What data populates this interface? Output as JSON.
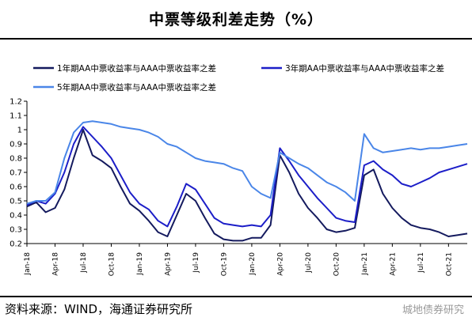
{
  "title": "中票等级利差走势（%）",
  "source": "资料来源：WIND，海通证券研究所",
  "watermark": "城地债券研究",
  "chart_data": {
    "type": "line",
    "title": "中票等级利差走势（%）",
    "xlabel": "",
    "ylabel": "",
    "ylim": [
      0.2,
      1.2
    ],
    "yticks": [
      0.2,
      0.3,
      0.4,
      0.5,
      0.6,
      0.7,
      0.8,
      0.9,
      1.0,
      1.1,
      1.2
    ],
    "ytick_labels": [
      "0.2",
      "0.3",
      "0.4",
      "0.5",
      "0.6",
      "0.7",
      "0.8",
      "0.9",
      "1",
      "1.1",
      "1.2"
    ],
    "xticks": [
      "Jan-18",
      "Apr-18",
      "Jul-18",
      "Oct-18",
      "Jan-19",
      "Apr-19",
      "Jul-19",
      "Oct-19",
      "Jan-20",
      "Apr-20",
      "Jul-20",
      "Oct-20",
      "Jan-21",
      "Apr-21",
      "Jul-21",
      "Oct-21"
    ],
    "x_range": [
      "2018-01",
      "2021-12"
    ],
    "grid": false,
    "legend_position": "top",
    "series": [
      {
        "name": "1年期AA中票收益率与AAA中票收益率之差",
        "color": "#141a5e",
        "x": [
          "2018-01",
          "2018-02",
          "2018-03",
          "2018-04",
          "2018-05",
          "2018-06",
          "2018-07",
          "2018-08",
          "2018-09",
          "2018-10",
          "2018-11",
          "2018-12",
          "2019-01",
          "2019-02",
          "2019-03",
          "2019-04",
          "2019-05",
          "2019-06",
          "2019-07",
          "2019-08",
          "2019-09",
          "2019-10",
          "2019-11",
          "2019-12",
          "2020-01",
          "2020-02",
          "2020-03",
          "2020-04",
          "2020-05",
          "2020-06",
          "2020-07",
          "2020-08",
          "2020-09",
          "2020-10",
          "2020-11",
          "2020-12",
          "2021-01",
          "2021-02",
          "2021-03",
          "2021-04",
          "2021-05",
          "2021-06",
          "2021-07",
          "2021-08",
          "2021-09",
          "2021-10",
          "2021-11",
          "2021-12"
        ],
        "values": [
          0.46,
          0.49,
          0.42,
          0.45,
          0.58,
          0.8,
          1.0,
          0.82,
          0.78,
          0.73,
          0.6,
          0.48,
          0.43,
          0.36,
          0.28,
          0.25,
          0.4,
          0.55,
          0.5,
          0.38,
          0.27,
          0.23,
          0.22,
          0.22,
          0.24,
          0.24,
          0.33,
          0.82,
          0.7,
          0.55,
          0.45,
          0.38,
          0.3,
          0.28,
          0.29,
          0.31,
          0.68,
          0.72,
          0.55,
          0.45,
          0.38,
          0.33,
          0.31,
          0.3,
          0.28,
          0.25,
          0.26,
          0.27
        ]
      },
      {
        "name": "3年期AA中票收益率与AAA中票收益率之差",
        "color": "#1c1ec8",
        "x": [
          "2018-01",
          "2018-02",
          "2018-03",
          "2018-04",
          "2018-05",
          "2018-06",
          "2018-07",
          "2018-08",
          "2018-09",
          "2018-10",
          "2018-11",
          "2018-12",
          "2019-01",
          "2019-02",
          "2019-03",
          "2019-04",
          "2019-05",
          "2019-06",
          "2019-07",
          "2019-08",
          "2019-09",
          "2019-10",
          "2019-11",
          "2019-12",
          "2020-01",
          "2020-02",
          "2020-03",
          "2020-04",
          "2020-05",
          "2020-06",
          "2020-07",
          "2020-08",
          "2020-09",
          "2020-10",
          "2020-11",
          "2020-12",
          "2021-01",
          "2021-02",
          "2021-03",
          "2021-04",
          "2021-05",
          "2021-06",
          "2021-07",
          "2021-08",
          "2021-09",
          "2021-10",
          "2021-11",
          "2021-12"
        ],
        "values": [
          0.47,
          0.5,
          0.48,
          0.55,
          0.7,
          0.9,
          1.02,
          0.95,
          0.88,
          0.8,
          0.68,
          0.56,
          0.48,
          0.44,
          0.36,
          0.32,
          0.46,
          0.62,
          0.58,
          0.48,
          0.38,
          0.34,
          0.33,
          0.32,
          0.33,
          0.32,
          0.4,
          0.87,
          0.78,
          0.68,
          0.6,
          0.52,
          0.45,
          0.38,
          0.36,
          0.35,
          0.75,
          0.78,
          0.72,
          0.68,
          0.62,
          0.6,
          0.63,
          0.66,
          0.7,
          0.72,
          0.74,
          0.76
        ]
      },
      {
        "name": "5年期AA中票收益率与AAA中票收益率之差",
        "color": "#4a86e8",
        "x": [
          "2018-01",
          "2018-02",
          "2018-03",
          "2018-04",
          "2018-05",
          "2018-06",
          "2018-07",
          "2018-08",
          "2018-09",
          "2018-10",
          "2018-11",
          "2018-12",
          "2019-01",
          "2019-02",
          "2019-03",
          "2019-04",
          "2019-05",
          "2019-06",
          "2019-07",
          "2019-08",
          "2019-09",
          "2019-10",
          "2019-11",
          "2019-12",
          "2020-01",
          "2020-02",
          "2020-03",
          "2020-04",
          "2020-05",
          "2020-06",
          "2020-07",
          "2020-08",
          "2020-09",
          "2020-10",
          "2020-11",
          "2020-12",
          "2021-01",
          "2021-02",
          "2021-03",
          "2021-04",
          "2021-05",
          "2021-06",
          "2021-07",
          "2021-08",
          "2021-09",
          "2021-10",
          "2021-11",
          "2021-12"
        ],
        "values": [
          0.48,
          0.5,
          0.5,
          0.56,
          0.8,
          0.98,
          1.05,
          1.06,
          1.05,
          1.04,
          1.02,
          1.01,
          1.0,
          0.98,
          0.95,
          0.9,
          0.88,
          0.84,
          0.8,
          0.78,
          0.77,
          0.76,
          0.73,
          0.71,
          0.6,
          0.55,
          0.52,
          0.84,
          0.8,
          0.76,
          0.73,
          0.68,
          0.63,
          0.6,
          0.56,
          0.5,
          0.97,
          0.87,
          0.84,
          0.85,
          0.86,
          0.87,
          0.86,
          0.87,
          0.87,
          0.88,
          0.89,
          0.9
        ]
      }
    ]
  }
}
